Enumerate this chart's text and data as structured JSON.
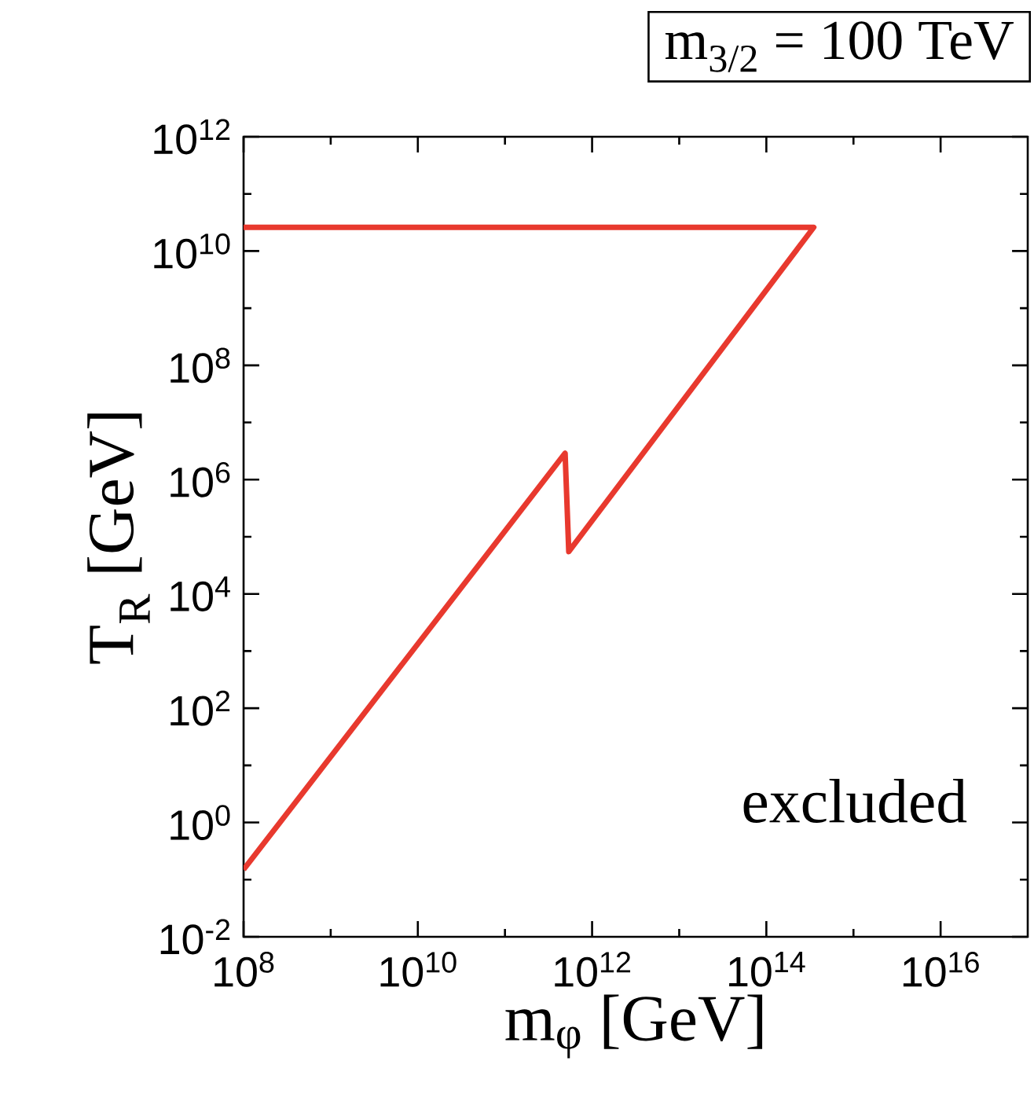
{
  "chart_data": {
    "type": "line",
    "title": "m$_{3/2}$ = 100 TeV",
    "xlabel": "m$_{φ}$ [GeV]",
    "ylabel": "T$_{R}$ [GeV]",
    "annotations": [
      "excluded"
    ],
    "log": "xy",
    "grid": false,
    "marker": "none",
    "line_style": "solid",
    "xlim": [
      100000000.0,
      1e+17
    ],
    "ylim": [
      0.01,
      1000000000000.0
    ],
    "xticks": [
      {
        "value": 100000000.0,
        "label": "10$^{8}$"
      },
      {
        "value": 1000000000.0,
        "label": null
      },
      {
        "value": 10000000000.0,
        "label": "10$^{10}$"
      },
      {
        "value": 100000000000.0,
        "label": null
      },
      {
        "value": 1000000000000.0,
        "label": "10$^{12}$"
      },
      {
        "value": 10000000000000.0,
        "label": null
      },
      {
        "value": 100000000000000.0,
        "label": "10$^{14}$"
      },
      {
        "value": 1000000000000000.0,
        "label": null
      },
      {
        "value": 1e+16,
        "label": "10$^{16}$"
      }
    ],
    "yticks": [
      {
        "value": 0.01,
        "label": "10$^{-2}$"
      },
      {
        "value": 0.1,
        "label": null
      },
      {
        "value": 1,
        "label": "10$^{0}$"
      },
      {
        "value": 10,
        "label": null
      },
      {
        "value": 100,
        "label": "10$^{2}$"
      },
      {
        "value": 1000,
        "label": null
      },
      {
        "value": 10000.0,
        "label": "10$^{4}$"
      },
      {
        "value": 100000.0,
        "label": null
      },
      {
        "value": 1000000.0,
        "label": "10$^{6}$"
      },
      {
        "value": 10000000.0,
        "label": null
      },
      {
        "value": 100000000.0,
        "label": "10$^{8}$"
      },
      {
        "value": 1000000000.0,
        "label": null
      },
      {
        "value": 10000000000.0,
        "label": "10$^{10}$"
      },
      {
        "value": 100000000000.0,
        "label": null
      },
      {
        "value": 1000000000000.0,
        "label": "10$^{12}$"
      }
    ],
    "series": [
      {
        "color": "#e8392e",
        "x": [
          100000000.0,
          490000000000.0,
          540000000000.0,
          350000000000000.0,
          100000000.0
        ],
        "values": [
          0.15,
          2900000.0,
          55000.0,
          26000000000.0,
          26000000000.0
        ]
      }
    ]
  }
}
